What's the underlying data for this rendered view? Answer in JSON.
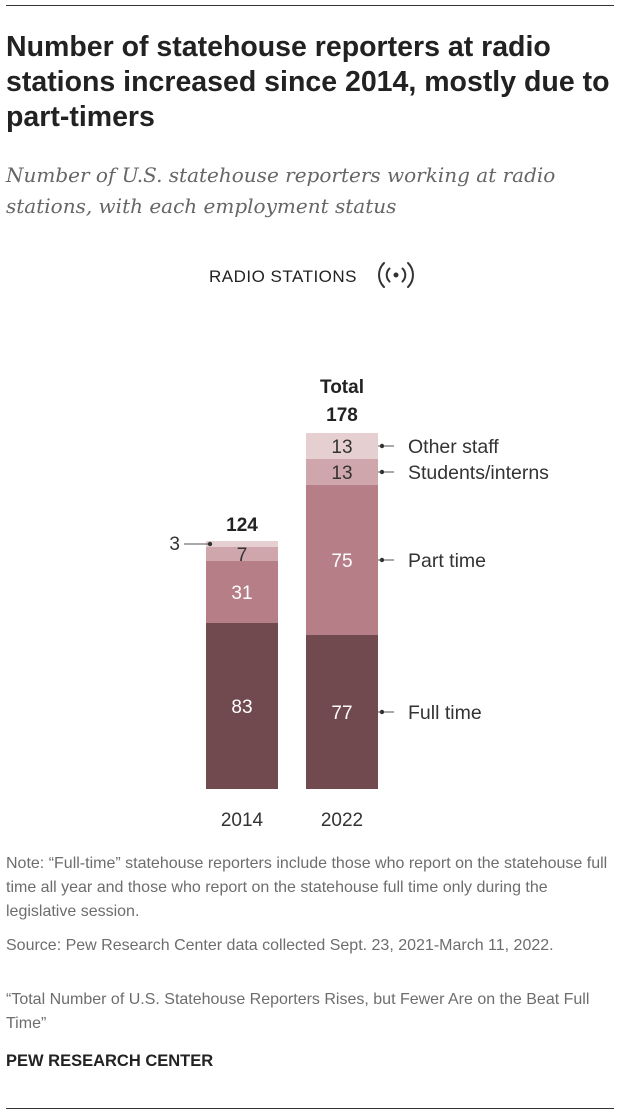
{
  "header": {
    "title": "Number of statehouse reporters at radio stations increased since 2014, mostly due to part-timers",
    "subtitle": "Number of U.S. statehouse reporters working at radio stations, with each employment status"
  },
  "footer": {
    "note": "Note: “Full-time” statehouse reporters include those who report on the statehouse full time all year and those who report on the statehouse full time only during the legislative session.",
    "source": "Source: Pew Research Center data collected Sept. 23, 2021-March 11, 2022.",
    "report": "“Total Number of U.S. Statehouse Reporters Rises, but Fewer Are on the Beat Full Time”",
    "credit": "PEW RESEARCH CENTER"
  },
  "chart_data": {
    "type": "bar",
    "stacked": true,
    "heading": "RADIO STATIONS",
    "heading_icon": "radio-broadcast-icon",
    "categories": [
      "2014",
      "2022"
    ],
    "series": [
      {
        "name": "Full time",
        "values": [
          83,
          77
        ],
        "color": "#714a50",
        "label_color": "#ffffff"
      },
      {
        "name": "Part time",
        "values": [
          31,
          75
        ],
        "color": "#b67f88",
        "label_color": "#ffffff"
      },
      {
        "name": "Students/interns",
        "values": [
          7,
          13
        ],
        "color": "#cfa6ab",
        "label_color": "#333333"
      },
      {
        "name": "Other staff",
        "values": [
          3,
          13
        ],
        "color": "#e6cfd1",
        "label_color": "#333333"
      }
    ],
    "totals": [
      124,
      178
    ],
    "total_label": "Total",
    "ylim": [
      0,
      178
    ],
    "grid": false,
    "legend_position": "right of 2022 bar"
  }
}
